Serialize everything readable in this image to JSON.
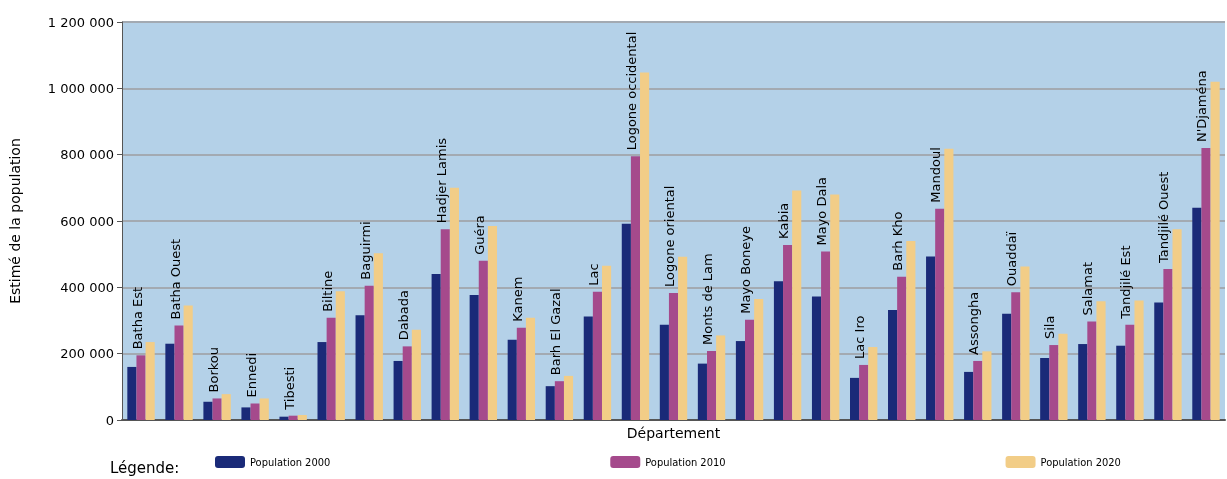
{
  "chart_data": {
    "type": "bar",
    "xlabel": "Département",
    "ylabel": "Estimé de la population",
    "legend_title": "Légende:",
    "categories": [
      "Batha Est",
      "Batha Ouest",
      "Borkou",
      "Ennedi",
      "Tibesti",
      "Biltine",
      "Baguirmi",
      "Dabada",
      "Hadjer Lamis",
      "Guéra",
      "Kanem",
      "Barh El Gazal",
      "Lac",
      "Logone occidental",
      "Logone oriental",
      "Monts de Lam",
      "Mayo Boneye",
      "Kabia",
      "Mayo Dala",
      "Lac Iro",
      "Barh Kho",
      "Mandoul",
      "Assongha",
      "Ouaddaï",
      "Sila",
      "Salamat",
      "Tandjilé Est",
      "Tandjilé Ouest",
      "N'Djaména"
    ],
    "series": [
      {
        "name": "Population 2000",
        "color": "#1a2a78",
        "values": [
          160000,
          230000,
          55000,
          38000,
          10000,
          235000,
          316000,
          178000,
          440000,
          377000,
          242000,
          102000,
          312000,
          592000,
          287000,
          170000,
          238000,
          418000,
          372000,
          127000,
          332000,
          493000,
          145000,
          320000,
          187000,
          229000,
          224000,
          354000,
          640000
        ]
      },
      {
        "name": "Population 2010",
        "color": "#a54a8c",
        "values": [
          195000,
          285000,
          65000,
          50000,
          13000,
          308000,
          405000,
          222000,
          575000,
          480000,
          278000,
          117000,
          387000,
          795000,
          383000,
          208000,
          302000,
          528000,
          508000,
          166000,
          432000,
          637000,
          178000,
          385000,
          226000,
          297000,
          287000,
          455000,
          820000
        ]
      },
      {
        "name": "Population 2020",
        "color": "#f2cd87",
        "values": [
          235000,
          345000,
          78000,
          65000,
          15000,
          388000,
          503000,
          272000,
          700000,
          585000,
          308000,
          133000,
          465000,
          1048000,
          492000,
          255000,
          365000,
          692000,
          680000,
          220000,
          540000,
          818000,
          207000,
          463000,
          260000,
          358000,
          360000,
          575000,
          1020000
        ]
      }
    ],
    "ylim": [
      0,
      1200000
    ],
    "yticks": [
      0,
      {
        "value": 200000,
        "label": "200 000"
      },
      {
        "value": 400000,
        "label": "400 000"
      },
      {
        "value": 600000,
        "label": "600 000"
      },
      {
        "value": 800000,
        "label": "800 000"
      },
      {
        "value": 1000000,
        "label": "1 000 000"
      },
      {
        "value": 1200000,
        "label": "1 200 000"
      }
    ],
    "grid": "y",
    "legend": "bottom"
  }
}
